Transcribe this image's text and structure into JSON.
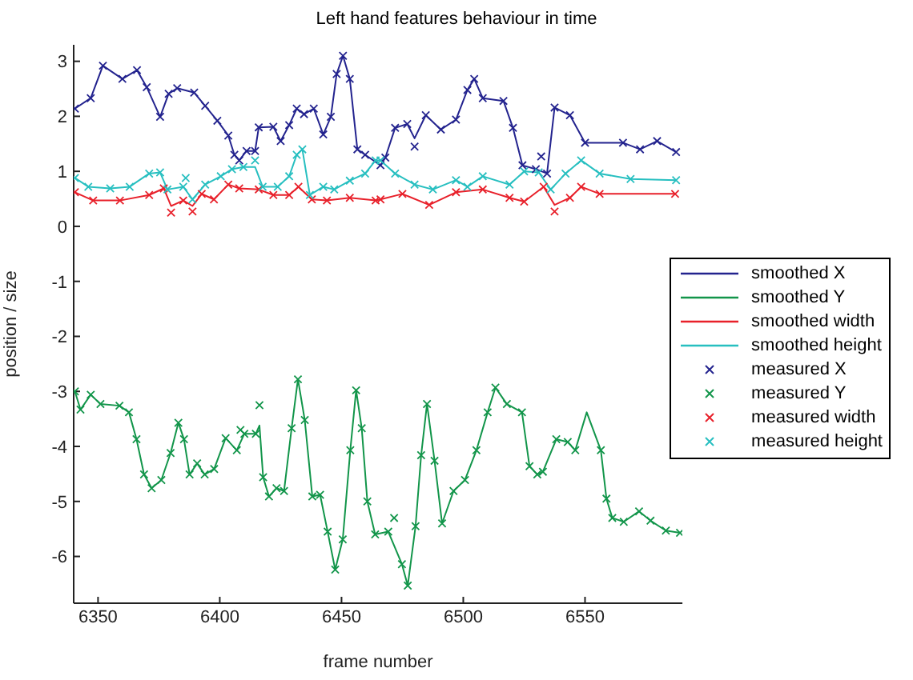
{
  "chart_data": {
    "type": "line",
    "title": "Left hand features behaviour in time",
    "xlabel": "frame number",
    "ylabel": "position / size",
    "xlim": [
      6340,
      6590
    ],
    "ylim": [
      -6.85,
      3.3
    ],
    "xticks": [
      6350,
      6400,
      6450,
      6500,
      6550
    ],
    "yticks": [
      -6,
      -5,
      -4,
      -3,
      -2,
      -1,
      0,
      1,
      2,
      3
    ],
    "grid": false,
    "legend": "right",
    "marker": "cross",
    "series": [
      {
        "name": "smoothed X",
        "marker": "none",
        "color": "#23238e",
        "x": [
          6340.5,
          6347,
          6352,
          6360,
          6366,
          6370,
          6375.5,
          6379,
          6382.5,
          6389.5,
          6394,
          6399,
          6403.5,
          6406,
          6408,
          6411,
          6414.5,
          6416,
          6422,
          6425,
          6428.5,
          6431.6,
          6434.6,
          6438.6,
          6442.5,
          6445.6,
          6448,
          6450.6,
          6453.4,
          6456.5,
          6459.7,
          6466,
          6468,
          6472,
          6477,
          6480,
          6484.6,
          6490.8,
          6497,
          6501.7,
          6504.5,
          6508,
          6516.5,
          6520.4,
          6524.3,
          6529.8,
          6534.4,
          6537.5,
          6543.8,
          6550,
          6565.6,
          6572.6,
          6579.6,
          6587.4
        ],
        "values": [
          2.14,
          2.33,
          2.92,
          2.68,
          2.84,
          2.53,
          1.99,
          2.41,
          2.51,
          2.43,
          2.19,
          1.92,
          1.65,
          1.3,
          1.2,
          1.37,
          1.37,
          1.8,
          1.81,
          1.55,
          1.84,
          2.14,
          2.04,
          2.14,
          1.67,
          1.99,
          2.77,
          3.1,
          2.68,
          1.4,
          1.3,
          1.11,
          1.25,
          1.79,
          1.86,
          1.6,
          2.02,
          1.76,
          1.94,
          2.48,
          2.68,
          2.33,
          2.28,
          1.79,
          1.11,
          1.04,
          0.96,
          2.16,
          2.02,
          1.52,
          1.52,
          1.4,
          1.55,
          1.35
        ]
      },
      {
        "name": "smoothed Y",
        "marker": "none",
        "color": "#12954a",
        "x": [
          6340.5,
          6342.8,
          6347,
          6351,
          6358.8,
          6362.7,
          6365.8,
          6368.9,
          6372,
          6376,
          6379.8,
          6383,
          6385.3,
          6387.6,
          6390.7,
          6393.8,
          6397.7,
          6402.4,
          6407,
          6410.1,
          6414.8,
          6416.3,
          6417.8,
          6420.2,
          6423.3,
          6426.4,
          6429.5,
          6432.1,
          6434.9,
          6438,
          6441.2,
          6444.3,
          6447.4,
          6450.5,
          6453.6,
          6456,
          6458.3,
          6460.6,
          6463.8,
          6469.2,
          6474.8,
          6477.2,
          6480.4,
          6482.7,
          6485.1,
          6488.2,
          6491.3,
          6496,
          6500.7,
          6505.4,
          6510,
          6513.2,
          6517.9,
          6524.1,
          6527.2,
          6530.4,
          6532.7,
          6538.2,
          6542.9,
          6546,
          6550.7,
          6556.5,
          6558.8,
          6561.2,
          6565.9,
          6572.2,
          6576.9,
          6583.2,
          6589
        ],
        "values": [
          -3.0,
          -3.33,
          -3.06,
          -3.23,
          -3.26,
          -3.38,
          -3.87,
          -4.51,
          -4.76,
          -4.61,
          -4.12,
          -3.57,
          -3.87,
          -4.51,
          -4.31,
          -4.51,
          -4.41,
          -3.85,
          -4.07,
          -3.77,
          -3.77,
          -3.62,
          -4.56,
          -4.91,
          -4.76,
          -4.81,
          -3.67,
          -2.78,
          -3.52,
          -4.91,
          -4.88,
          -5.55,
          -6.24,
          -5.69,
          -4.07,
          -2.98,
          -3.67,
          -5.0,
          -5.6,
          -5.55,
          -6.14,
          -6.53,
          -5.45,
          -4.16,
          -3.23,
          -4.26,
          -5.4,
          -4.81,
          -4.61,
          -4.07,
          -3.38,
          -2.93,
          -3.23,
          -3.38,
          -4.36,
          -4.51,
          -4.46,
          -3.87,
          -3.92,
          -4.07,
          -3.38,
          -4.07,
          -4.95,
          -5.3,
          -5.37,
          -5.18,
          -5.35,
          -5.53,
          -5.57
        ]
      },
      {
        "name": "smoothed width",
        "marker": "none",
        "color": "#e8202a",
        "x": [
          6340.5,
          6348,
          6359,
          6371,
          6377,
          6380,
          6385,
          6388.8,
          6392.6,
          6397.6,
          6403.5,
          6408,
          6416,
          6422,
          6428.5,
          6432.3,
          6437.8,
          6444,
          6453.4,
          6464,
          6466,
          6475,
          6486,
          6497,
          6508,
          6519,
          6525,
          6533,
          6537.5,
          6543.8,
          6548.4,
          6556,
          6587
        ],
        "values": [
          0.62,
          0.47,
          0.47,
          0.57,
          0.69,
          0.37,
          0.47,
          0.37,
          0.59,
          0.49,
          0.76,
          0.69,
          0.67,
          0.57,
          0.57,
          0.72,
          0.49,
          0.47,
          0.52,
          0.47,
          0.49,
          0.59,
          0.39,
          0.62,
          0.67,
          0.52,
          0.45,
          0.72,
          0.39,
          0.52,
          0.72,
          0.59,
          0.59
        ]
      },
      {
        "name": "smoothed height",
        "marker": "none",
        "color": "#27bfc0",
        "x": [
          6340.5,
          6346,
          6355,
          6363,
          6371,
          6375.5,
          6378.5,
          6385,
          6388.8,
          6394,
          6400.4,
          6405,
          6409.7,
          6414.5,
          6417.6,
          6423.8,
          6428.5,
          6431.6,
          6433.9,
          6437,
          6442.5,
          6447,
          6453.4,
          6459.7,
          6464,
          6466,
          6472,
          6480,
          6487.5,
          6497,
          6501.7,
          6508,
          6519,
          6525,
          6531,
          6535.9,
          6542,
          6548.4,
          6556,
          6568.7,
          6587.4
        ],
        "values": [
          0.88,
          0.72,
          0.69,
          0.72,
          0.96,
          0.98,
          0.67,
          0.72,
          0.49,
          0.76,
          0.91,
          1.04,
          1.08,
          1.08,
          0.72,
          0.72,
          0.91,
          1.3,
          1.4,
          0.57,
          0.72,
          0.67,
          0.83,
          0.96,
          1.2,
          1.2,
          0.96,
          0.76,
          0.67,
          0.84,
          0.72,
          0.91,
          0.76,
          1.0,
          0.98,
          0.67,
          0.96,
          1.2,
          0.96,
          0.86,
          0.84
        ]
      },
      {
        "name": "measured X",
        "type": "scatter",
        "color": "#23238e",
        "x": [
          6340.5,
          6347,
          6352,
          6360,
          6366,
          6370,
          6375.5,
          6379,
          6382.5,
          6389.5,
          6394,
          6399,
          6403.5,
          6406,
          6408,
          6411,
          6414.5,
          6416,
          6422,
          6425,
          6428.5,
          6431.6,
          6434.6,
          6438.6,
          6442.5,
          6445.6,
          6448,
          6450.6,
          6453.4,
          6456.5,
          6459.7,
          6466,
          6468,
          6472,
          6477,
          6480,
          6484.6,
          6490.8,
          6497,
          6501.7,
          6504.5,
          6508,
          6516.5,
          6520.4,
          6524.3,
          6529.8,
          6532,
          6534.4,
          6537.5,
          6543.8,
          6550,
          6565.6,
          6572.6,
          6579.6,
          6587.4
        ],
        "values": [
          2.14,
          2.33,
          2.92,
          2.68,
          2.84,
          2.53,
          1.99,
          2.41,
          2.51,
          2.43,
          2.19,
          1.92,
          1.65,
          1.3,
          1.2,
          1.37,
          1.37,
          1.8,
          1.81,
          1.55,
          1.84,
          2.14,
          2.04,
          2.14,
          1.67,
          1.99,
          2.77,
          3.1,
          2.68,
          1.4,
          1.3,
          1.11,
          1.25,
          1.79,
          1.86,
          1.45,
          2.02,
          1.76,
          1.94,
          2.48,
          2.68,
          2.33,
          2.28,
          1.79,
          1.11,
          1.04,
          1.27,
          0.96,
          2.16,
          2.02,
          1.52,
          1.52,
          1.4,
          1.55,
          1.35
        ]
      },
      {
        "name": "measured Y",
        "type": "scatter",
        "color": "#12954a",
        "x": [
          6340.5,
          6342.8,
          6347,
          6351,
          6358.8,
          6362.7,
          6365.8,
          6368.9,
          6372,
          6376,
          6379.8,
          6383,
          6385.3,
          6387.6,
          6390.7,
          6393.8,
          6397.7,
          6402.4,
          6407,
          6408.5,
          6410.1,
          6414.8,
          6416.3,
          6417.8,
          6420.2,
          6423.3,
          6426.4,
          6429.5,
          6432.1,
          6434.9,
          6438,
          6441.2,
          6444.3,
          6447.4,
          6450.5,
          6453.6,
          6456,
          6458.3,
          6460.6,
          6463.8,
          6469.2,
          6471.6,
          6474.8,
          6477.2,
          6480.4,
          6482.7,
          6485.1,
          6488.2,
          6491.3,
          6496,
          6500.7,
          6505.4,
          6510,
          6513.2,
          6517.9,
          6524.1,
          6527.2,
          6530.4,
          6532.7,
          6538.2,
          6542.9,
          6546,
          6556.5,
          6558.8,
          6561.2,
          6565.9,
          6572.2,
          6576.9,
          6583.2,
          6589
        ],
        "values": [
          -3.0,
          -3.33,
          -3.06,
          -3.23,
          -3.26,
          -3.38,
          -3.87,
          -4.51,
          -4.76,
          -4.61,
          -4.12,
          -3.57,
          -3.87,
          -4.51,
          -4.31,
          -4.51,
          -4.41,
          -3.85,
          -4.07,
          -3.7,
          -3.77,
          -3.77,
          -3.25,
          -4.56,
          -4.91,
          -4.76,
          -4.81,
          -3.67,
          -2.78,
          -3.52,
          -4.91,
          -4.88,
          -5.55,
          -6.24,
          -5.69,
          -4.07,
          -2.98,
          -3.67,
          -5.0,
          -5.6,
          -5.55,
          -5.3,
          -6.14,
          -6.53,
          -5.45,
          -4.16,
          -3.23,
          -4.26,
          -5.4,
          -4.81,
          -4.61,
          -4.07,
          -3.38,
          -2.93,
          -3.23,
          -3.38,
          -4.36,
          -4.51,
          -4.46,
          -3.87,
          -3.92,
          -4.07,
          -4.07,
          -4.95,
          -5.3,
          -5.37,
          -5.18,
          -5.35,
          -5.53,
          -5.57
        ]
      },
      {
        "name": "measured width",
        "type": "scatter",
        "color": "#e8202a",
        "x": [
          6340.5,
          6348,
          6359,
          6371,
          6377,
          6380,
          6385,
          6388.8,
          6392.6,
          6397.6,
          6403.5,
          6408,
          6416,
          6422,
          6428.5,
          6432.3,
          6437.8,
          6444,
          6453.4,
          6464,
          6466,
          6475,
          6486,
          6497,
          6508,
          6519,
          6525,
          6533,
          6537.5,
          6543.8,
          6548.4,
          6556,
          6587
        ],
        "values": [
          0.62,
          0.47,
          0.47,
          0.57,
          0.69,
          0.25,
          0.47,
          0.27,
          0.59,
          0.49,
          0.76,
          0.69,
          0.67,
          0.57,
          0.57,
          0.72,
          0.49,
          0.47,
          0.52,
          0.47,
          0.49,
          0.59,
          0.39,
          0.62,
          0.67,
          0.52,
          0.45,
          0.72,
          0.27,
          0.52,
          0.72,
          0.59,
          0.59
        ]
      },
      {
        "name": "measured height",
        "type": "scatter",
        "color": "#27bfc0",
        "x": [
          6340.5,
          6346,
          6355,
          6363,
          6371,
          6375.5,
          6378.5,
          6385,
          6386,
          6388.8,
          6394,
          6400.4,
          6405,
          6409.7,
          6414.5,
          6417.6,
          6423.8,
          6428.5,
          6431.6,
          6433.9,
          6437,
          6442.5,
          6447,
          6453.4,
          6459.7,
          6464,
          6466,
          6472,
          6480,
          6487.5,
          6497,
          6501.7,
          6508,
          6519,
          6525,
          6531,
          6535.9,
          6542,
          6548.4,
          6556,
          6568.7,
          6587.4
        ],
        "values": [
          0.88,
          0.72,
          0.69,
          0.72,
          0.96,
          0.98,
          0.67,
          0.72,
          0.88,
          0.49,
          0.76,
          0.91,
          1.04,
          1.08,
          1.2,
          0.72,
          0.72,
          0.91,
          1.3,
          1.4,
          0.57,
          0.72,
          0.67,
          0.83,
          0.96,
          1.2,
          1.2,
          0.96,
          0.76,
          0.67,
          0.84,
          0.72,
          0.91,
          0.76,
          1.0,
          0.98,
          0.67,
          0.96,
          1.2,
          0.96,
          0.86,
          0.84
        ]
      }
    ]
  }
}
